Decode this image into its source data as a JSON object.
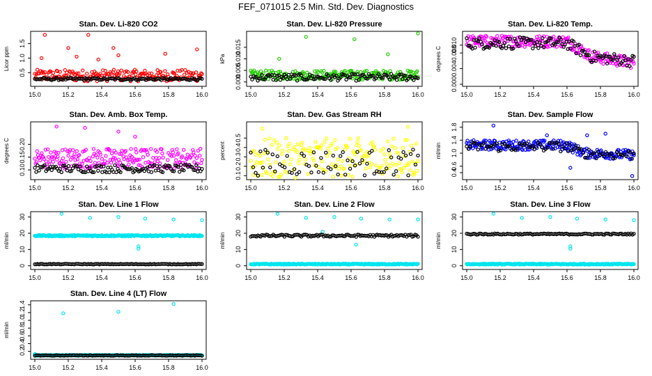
{
  "title": "FEF_071015  2.5 Min. Std. Dev. Diagnostics",
  "colors": {
    "red": "#ff0000",
    "green": "#22cc00",
    "magenta": "#ff00ff",
    "yellow": "#ffff00",
    "blue": "#0000ff",
    "cyan": "#00e5ee",
    "black": "#000000"
  },
  "chart_data": [
    {
      "type": "scatter",
      "title": "Stan. Dev. Li-820 CO2",
      "ylabel": "Licor ppm",
      "xlim": [
        15.0,
        16.0
      ],
      "ylim": [
        0.1,
        1.85
      ],
      "xticks": [
        "15.0",
        "15.2",
        "15.4",
        "15.6",
        "15.8",
        "16.0"
      ],
      "yticks": [
        "0.5",
        "1.0",
        "1.5"
      ],
      "series": [
        {
          "name": "primary",
          "color": "red",
          "base": 0.4,
          "spread": 0.2,
          "n": 200,
          "outliers": [
            [
              15.06,
              1.8
            ],
            [
              15.2,
              1.35
            ],
            [
              15.32,
              1.8
            ],
            [
              15.25,
              1.05
            ],
            [
              15.47,
              1.35
            ],
            [
              15.5,
              1.1
            ],
            [
              15.78,
              1.15
            ],
            [
              15.97,
              1.3
            ],
            [
              15.04,
              1.0
            ],
            [
              15.38,
              0.95
            ]
          ]
        },
        {
          "name": "reference",
          "color": "black",
          "base": 0.28,
          "spread": 0.04,
          "n": 120,
          "outliers": []
        }
      ]
    },
    {
      "type": "scatter",
      "title": "Stan. Dev. Li-820 Pressure",
      "ylabel": "kPa",
      "xlim": [
        15.0,
        16.0
      ],
      "ylim": [
        -0.001,
        0.021
      ],
      "xticks": [
        "15.0",
        "15.2",
        "15.4",
        "15.6",
        "15.8",
        "16.0"
      ],
      "yticks": [
        "0.000",
        "0.005",
        "0.010",
        "0.015"
      ],
      "series": [
        {
          "name": "primary",
          "color": "green",
          "base": 0.003,
          "spread": 0.002,
          "n": 200,
          "outliers": [
            [
              15.33,
              0.0195
            ],
            [
              15.17,
              0.01
            ],
            [
              15.62,
              0.0185
            ],
            [
              15.82,
              0.012
            ],
            [
              16.0,
              0.021
            ]
          ]
        },
        {
          "name": "reference",
          "color": "black",
          "base": 0.002,
          "spread": 0.0015,
          "n": 120,
          "outliers": []
        }
      ]
    },
    {
      "type": "scatter",
      "title": "Stan. Dev. Li-820 Temp.",
      "ylabel": "degrees C",
      "xlim": [
        15.0,
        16.0
      ],
      "ylim": [
        0.0,
        0.013
      ],
      "xticks": [
        "15.0",
        "15.2",
        "15.4",
        "15.6",
        "15.8",
        "16.0"
      ],
      "yticks": [
        "0.000",
        "0.004",
        "0.008",
        "0.010"
      ],
      "series": [
        {
          "name": "primary",
          "color": "magenta",
          "base": 0.011,
          "spread": 0.0015,
          "n": 220,
          "trend": [
            [
              15.0,
              0.011
            ],
            [
              15.6,
              0.011
            ],
            [
              15.75,
              0.007
            ],
            [
              16.0,
              0.0055
            ]
          ],
          "outliers": []
        },
        {
          "name": "reference",
          "color": "black",
          "base": 0.0105,
          "spread": 0.0015,
          "n": 120,
          "trend": [
            [
              15.0,
              0.0105
            ],
            [
              15.6,
              0.0105
            ],
            [
              15.75,
              0.007
            ],
            [
              16.0,
              0.006
            ]
          ],
          "outliers": []
        }
      ]
    },
    {
      "type": "scatter",
      "title": "Stan. Dev. Amb. Box Temp.",
      "ylabel": "degrees C",
      "xlim": [
        15.0,
        16.0
      ],
      "ylim": [
        0.07,
        0.28
      ],
      "xticks": [
        "15.0",
        "15.2",
        "15.4",
        "15.6",
        "15.8",
        "16.0"
      ],
      "yticks": [
        "0.10",
        "0.15",
        "0.20"
      ],
      "series": [
        {
          "name": "primary",
          "color": "magenta",
          "base": 0.145,
          "spread": 0.04,
          "n": 220,
          "outliers": [
            [
              15.13,
              0.27
            ],
            [
              15.3,
              0.265
            ],
            [
              15.6,
              0.23
            ],
            [
              15.5,
              0.25
            ]
          ]
        },
        {
          "name": "reference",
          "color": "black",
          "base": 0.105,
          "spread": 0.015,
          "n": 120,
          "outliers": []
        }
      ]
    },
    {
      "type": "scatter",
      "title": "Stan. Dev. Gas Stream RH",
      "ylabel": "percent",
      "xlim": [
        15.0,
        16.0
      ],
      "ylim": [
        0.08,
        0.65
      ],
      "xticks": [
        "15.0",
        "15.2",
        "15.4",
        "15.6",
        "15.8",
        "16.0"
      ],
      "yticks": [
        "0.1",
        "0.2",
        "0.3",
        "0.4",
        "0.5"
      ],
      "series": [
        {
          "name": "primary",
          "color": "yellow",
          "base": 0.28,
          "spread": 0.22,
          "n": 200,
          "outliers": [
            [
              15.07,
              0.6
            ],
            [
              15.94,
              0.62
            ]
          ]
        },
        {
          "name": "reference",
          "color": "black",
          "base": 0.24,
          "spread": 0.14,
          "n": 70,
          "outliers": []
        }
      ]
    },
    {
      "type": "scatter",
      "title": "Stan. Dev. Sample Flow",
      "ylabel": "ml/min",
      "xlim": [
        15.0,
        16.0
      ],
      "ylim": [
        0.25,
        1.9
      ],
      "xticks": [
        "15.0",
        "15.2",
        "15.4",
        "15.6",
        "15.8",
        "16.0"
      ],
      "yticks": [
        "0.4",
        "0.6",
        "1.0",
        "1.4",
        "1.8"
      ],
      "series": [
        {
          "name": "primary",
          "color": "blue",
          "base": 1.25,
          "spread": 0.15,
          "n": 220,
          "trend": [
            [
              15.0,
              1.25
            ],
            [
              15.6,
              1.25
            ],
            [
              15.7,
              1.0
            ],
            [
              16.0,
              0.95
            ]
          ],
          "outliers": [
            [
              15.16,
              1.85
            ],
            [
              15.72,
              1.55
            ],
            [
              15.83,
              1.6
            ],
            [
              15.62,
              0.55
            ],
            [
              15.99,
              0.3
            ],
            [
              15.48,
              1.55
            ]
          ]
        },
        {
          "name": "reference",
          "color": "black",
          "base": 1.2,
          "spread": 0.15,
          "n": 90,
          "trend": [
            [
              15.0,
              1.2
            ],
            [
              15.6,
              1.2
            ],
            [
              15.7,
              1.0
            ],
            [
              16.0,
              0.95
            ]
          ],
          "outliers": []
        }
      ]
    },
    {
      "type": "scatter",
      "title": "Stan. Dev. Line 1 Flow",
      "ylabel": "ml/min",
      "xlim": [
        15.0,
        16.0
      ],
      "ylim": [
        -1,
        32
      ],
      "xticks": [
        "15.0",
        "15.2",
        "15.4",
        "15.6",
        "15.8",
        "16.0"
      ],
      "yticks": [
        "0",
        "10",
        "20",
        "30"
      ],
      "series": [
        {
          "name": "primary",
          "color": "cyan",
          "base": 18.5,
          "spread": 0.4,
          "n": 260,
          "outliers": [
            [
              15.16,
              32
            ],
            [
              15.33,
              29.5
            ],
            [
              15.5,
              30
            ],
            [
              15.66,
              29
            ],
            [
              15.83,
              28.5
            ],
            [
              16.0,
              28
            ],
            [
              15.62,
              10.5
            ],
            [
              15.62,
              12
            ]
          ]
        },
        {
          "name": "reference",
          "color": "black",
          "base": 1.0,
          "spread": 0.2,
          "n": 120,
          "outliers": []
        }
      ]
    },
    {
      "type": "scatter",
      "title": "Stan. Dev. Line 2 Flow",
      "ylabel": "ml/min",
      "xlim": [
        15.0,
        16.0
      ],
      "ylim": [
        -1,
        32
      ],
      "xticks": [
        "15.0",
        "15.2",
        "15.4",
        "15.6",
        "15.8",
        "16.0"
      ],
      "yticks": [
        "0",
        "10",
        "20",
        "30"
      ],
      "series": [
        {
          "name": "primary",
          "color": "cyan",
          "base": 1.0,
          "spread": 0.3,
          "n": 260,
          "outliers": [
            [
              15.16,
              32
            ],
            [
              15.33,
              29.5
            ],
            [
              15.5,
              30
            ],
            [
              15.66,
              29
            ],
            [
              15.83,
              28.5
            ],
            [
              16.0,
              28.5
            ],
            [
              15.63,
              13
            ],
            [
              15.43,
              21
            ]
          ]
        },
        {
          "name": "reference",
          "color": "black",
          "base": 18.5,
          "spread": 0.7,
          "n": 120,
          "outliers": []
        }
      ]
    },
    {
      "type": "scatter",
      "title": "Stan. Dev. Line 3 Flow",
      "ylabel": "ml/min",
      "xlim": [
        15.0,
        16.0
      ],
      "ylim": [
        -1,
        32
      ],
      "xticks": [
        "15.0",
        "15.2",
        "15.4",
        "15.6",
        "15.8",
        "16.0"
      ],
      "yticks": [
        "0",
        "10",
        "20",
        "30"
      ],
      "series": [
        {
          "name": "primary",
          "color": "cyan",
          "base": 1.0,
          "spread": 0.3,
          "n": 260,
          "outliers": [
            [
              15.16,
              32
            ],
            [
              15.33,
              29.5
            ],
            [
              15.5,
              30
            ],
            [
              15.66,
              29
            ],
            [
              15.83,
              28.5
            ],
            [
              16.0,
              28
            ],
            [
              15.62,
              10.5
            ],
            [
              15.62,
              12
            ]
          ]
        },
        {
          "name": "reference",
          "color": "black",
          "base": 19.5,
          "spread": 0.4,
          "n": 120,
          "outliers": []
        }
      ]
    },
    {
      "type": "scatter",
      "title": "Stan. Dev. Line 4 (LT) Flow",
      "ylabel": "ml/min",
      "xlim": [
        15.0,
        16.0
      ],
      "ylim": [
        0.05,
        1.45
      ],
      "xticks": [
        "15.0",
        "15.2",
        "15.4",
        "15.6",
        "15.8",
        "16.0"
      ],
      "yticks": [
        "0.2",
        "0.4",
        "0.6",
        "0.8",
        "1.0",
        "1.2",
        "1.4"
      ],
      "series": [
        {
          "name": "primary",
          "color": "cyan",
          "base": 0.1,
          "spread": 0.01,
          "n": 260,
          "outliers": [
            [
              15.17,
              1.18
            ],
            [
              15.5,
              1.22
            ],
            [
              15.83,
              1.42
            ],
            [
              15.0,
              0.13
            ]
          ]
        },
        {
          "name": "reference",
          "color": "black",
          "base": 0.095,
          "spread": 0.008,
          "n": 120,
          "outliers": []
        }
      ]
    }
  ]
}
